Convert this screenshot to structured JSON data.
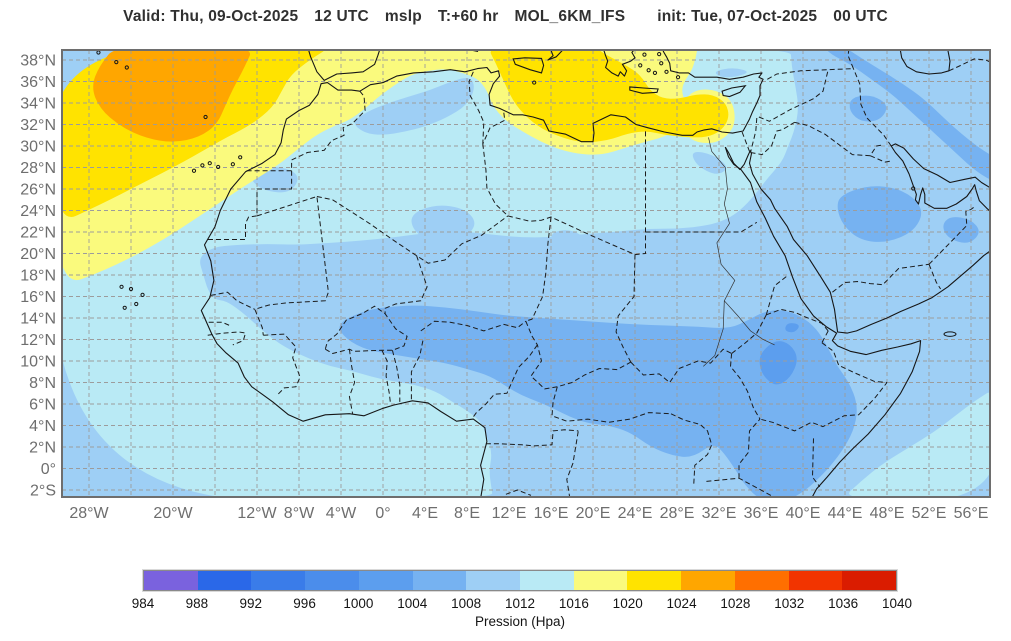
{
  "header": {
    "title_parts": [
      "Valid: Thu, 09-Oct-2025",
      "12 UTC",
      "mslp",
      "T:+60 hr",
      "MOL_6KM_IFS",
      "init: Tue, 07-Oct-2025",
      "00 UTC"
    ]
  },
  "axes": {
    "lat_ticks": [
      {
        "label": "38°N",
        "lat": 38
      },
      {
        "label": "36°N",
        "lat": 36
      },
      {
        "label": "34°N",
        "lat": 34
      },
      {
        "label": "32°N",
        "lat": 32
      },
      {
        "label": "30°N",
        "lat": 30
      },
      {
        "label": "28°N",
        "lat": 28
      },
      {
        "label": "26°N",
        "lat": 26
      },
      {
        "label": "24°N",
        "lat": 24
      },
      {
        "label": "22°N",
        "lat": 22
      },
      {
        "label": "20°N",
        "lat": 20
      },
      {
        "label": "18°N",
        "lat": 18
      },
      {
        "label": "16°N",
        "lat": 16
      },
      {
        "label": "14°N",
        "lat": 14
      },
      {
        "label": "12°N",
        "lat": 12
      },
      {
        "label": "10°N",
        "lat": 10
      },
      {
        "label": "8°N",
        "lat": 8
      },
      {
        "label": "6°N",
        "lat": 6
      },
      {
        "label": "4°N",
        "lat": 4
      },
      {
        "label": "2°N",
        "lat": 2
      },
      {
        "label": "0°",
        "lat": 0
      },
      {
        "label": "2°S",
        "lat": -2
      }
    ],
    "lon_ticks": [
      {
        "label": "28°W",
        "lon": -28
      },
      {
        "label": "20°W",
        "lon": -20
      },
      {
        "label": "12°W",
        "lon": -12
      },
      {
        "label": "8°W",
        "lon": -8
      },
      {
        "label": "4°W",
        "lon": -4
      },
      {
        "label": "0°",
        "lon": 0
      },
      {
        "label": "4°E",
        "lon": 4
      },
      {
        "label": "8°E",
        "lon": 8
      },
      {
        "label": "12°E",
        "lon": 12
      },
      {
        "label": "16°E",
        "lon": 16
      },
      {
        "label": "20°E",
        "lon": 20
      },
      {
        "label": "24°E",
        "lon": 24
      },
      {
        "label": "28°E",
        "lon": 28
      },
      {
        "label": "32°E",
        "lon": 32
      },
      {
        "label": "36°E",
        "lon": 36
      },
      {
        "label": "40°E",
        "lon": 40
      },
      {
        "label": "44°E",
        "lon": 44
      },
      {
        "label": "48°E",
        "lon": 48
      },
      {
        "label": "52°E",
        "lon": 52
      },
      {
        "label": "56°E",
        "lon": 56
      }
    ]
  },
  "colorbar": {
    "label": "Pression (Hpa)",
    "levels": [
      984,
      988,
      992,
      996,
      1000,
      1004,
      1008,
      1012,
      1016,
      1020,
      1024,
      1028,
      1032,
      1036,
      1040
    ],
    "colors": [
      "#7a62de",
      "#2a68e8",
      "#3a7ce9",
      "#4b8deb",
      "#5c9eee",
      "#76b2f1",
      "#9ecff5",
      "#b9eaf5",
      "#fafa7d",
      "#ffe300",
      "#ffa600",
      "#ff6f00",
      "#f23400",
      "#da1c00"
    ]
  },
  "chart_data": {
    "type": "heatmap",
    "subtype": "filled-contour mean-sea-level-pressure weather map",
    "title": "Valid: Thu, 09-Oct-2025 12 UTC mslp T:+60 hr MOL_6KM_IFS init: Tue, 07-Oct-2025 00 UTC",
    "field": "mslp",
    "model": "MOL_6KM_IFS",
    "valid_time": "Thu, 09-Oct-2025 12 UTC",
    "lead_time_hours": 60,
    "init_time": "Tue, 07-Oct-2025 00 UTC",
    "colorbar_label": "Pression (Hpa)",
    "levels_hpa": [
      984,
      988,
      992,
      996,
      1000,
      1004,
      1008,
      1012,
      1016,
      1020,
      1024,
      1028,
      1032,
      1036,
      1040
    ],
    "colors": [
      "#7a62de",
      "#2a68e8",
      "#3a7ce9",
      "#4b8deb",
      "#5c9eee",
      "#76b2f1",
      "#9ecff5",
      "#b9eaf5",
      "#fafa7d",
      "#ffe300",
      "#ffa600",
      "#ff6f00",
      "#f23400",
      "#da1c00"
    ],
    "lon_range_deg": [
      -31,
      58
    ],
    "lat_range_deg": [
      -2.6,
      39
    ],
    "grid": "dashed graticule every 4 deg longitude and 2 deg latitude",
    "legend_position": "bottom",
    "features": [
      {
        "value_hpa": "1024-1028",
        "description": "High-pressure core over the NE Atlantic west of Morocco / Madeira, centered near 20W 34N"
      },
      {
        "value_hpa": "1020-1024",
        "description": "Broad ridge over the NE Atlantic and a lobe over the central Mediterranean from Sicily to the Libyan and Egyptian coasts"
      },
      {
        "value_hpa": "1016-1020",
        "description": "Band along NW Africa, western Mediterranean, Greece and western Turkey, reaching the tropical Atlantic near 17N at the west edge"
      },
      {
        "value_hpa": "1012-1016",
        "description": "Sahara belt around 21-30N, eastern Mediterranean and Levant, tropical Atlantic, Gulf of Guinea coastal strip and SW Indian Ocean corner"
      },
      {
        "value_hpa": "1008-1012",
        "description": "Most of sub-Saharan interior, Red Sea, Arabia margins and the Middle East"
      },
      {
        "value_hpa": "1004-1008",
        "description": "Heat-low belt from the Sahel across Sudan, the Horn of Africa, central Arabia and a swath over Iraq / Iran"
      },
      {
        "value_hpa": "1000-1004",
        "description": "Lowest pressures over the Ethiopian Highlands near 37E 10N"
      }
    ]
  }
}
